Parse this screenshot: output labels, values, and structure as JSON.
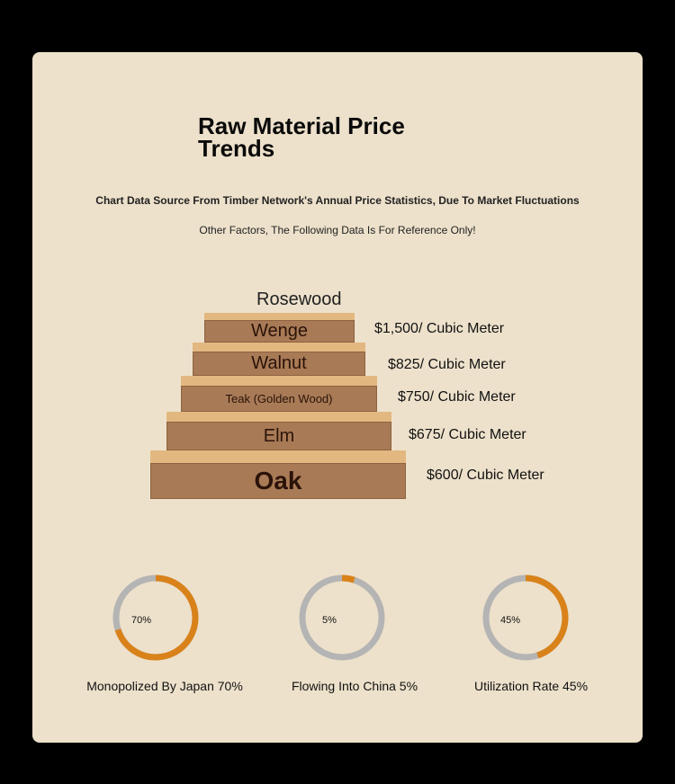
{
  "title": "Raw Material Price Trends",
  "subtitle_line1": "Chart Data Source From Timber Network's Annual Price Statistics, Due To Market Fluctuations",
  "subtitle_line2": "Other Factors, The Following Data Is For Reference Only!",
  "pyramid": {
    "top_label": "Rosewood",
    "tiers": [
      {
        "name": "Wenge",
        "price": "$1,500/ Cubic Meter"
      },
      {
        "name": "Walnut",
        "price": "$825/ Cubic Meter"
      },
      {
        "name": "Teak (Golden Wood)",
        "price": "$750/ Cubic Meter"
      },
      {
        "name": "Elm",
        "price": "$675/ Cubic Meter"
      },
      {
        "name": "Oak",
        "price": "$600/ Cubic Meter"
      }
    ]
  },
  "stats": [
    {
      "percent": 70,
      "percent_label": "70%",
      "label": "Monopolized By Japan 70%"
    },
    {
      "percent": 5,
      "percent_label": "5%",
      "label": "Flowing Into China 5%"
    },
    {
      "percent": 45,
      "percent_label": "45%",
      "label": "Utilization Rate 45%"
    }
  ],
  "colors": {
    "ring_fill": "#d9821a",
    "ring_track": "#b4b4b4",
    "card": "#ede1cb"
  }
}
